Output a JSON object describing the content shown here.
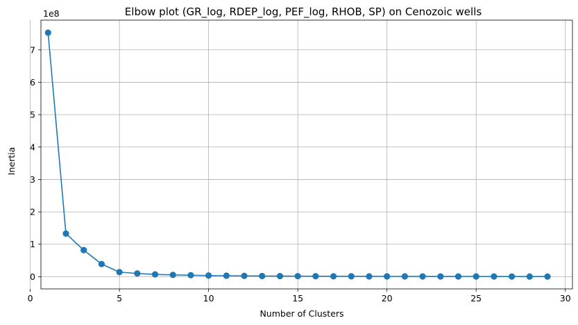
{
  "chart_data": {
    "type": "line",
    "title": "Elbow plot (GR_log, RDEP_log, PEF_log, RHOB, SP) on Cenozoic wells",
    "xlabel": "Number of Clusters",
    "ylabel": "Inertia",
    "y_offset_label": "1e8",
    "xlim": [
      0.6,
      30.4
    ],
    "ylim": [
      -0.377,
      7.917
    ],
    "y_scale_note": "values in units of 1e8",
    "x_ticks": [
      0,
      5,
      10,
      15,
      20,
      25,
      30
    ],
    "y_ticks": [
      0,
      1,
      2,
      3,
      4,
      5,
      6,
      7
    ],
    "grid": true,
    "color": "#1f77b4",
    "marker": "circle",
    "x": [
      1,
      2,
      3,
      4,
      5,
      6,
      7,
      8,
      9,
      10,
      11,
      12,
      13,
      14,
      15,
      16,
      17,
      18,
      19,
      20,
      21,
      22,
      23,
      24,
      25,
      26,
      27,
      28,
      29
    ],
    "series": [
      {
        "values": [
          7.53,
          1.33,
          0.82,
          0.39,
          0.14,
          0.1,
          0.07,
          0.055,
          0.045,
          0.035,
          0.03,
          0.025,
          0.02,
          0.018,
          0.016,
          0.014,
          0.012,
          0.011,
          0.01,
          0.009,
          0.008,
          0.0075,
          0.007,
          0.0065,
          0.006,
          0.0055,
          0.005,
          0.0045,
          0.004
        ]
      }
    ]
  }
}
